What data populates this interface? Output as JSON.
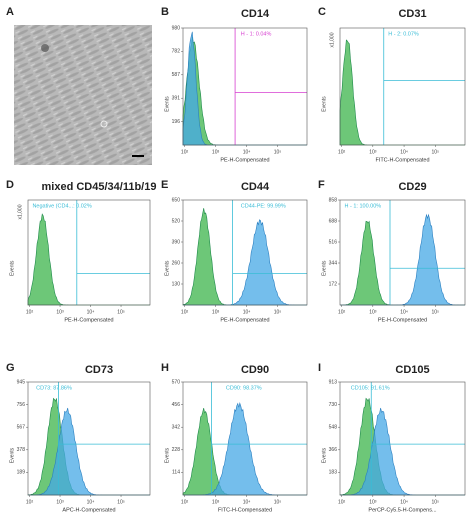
{
  "figure": {
    "panels": [
      {
        "letter": "A"
      },
      {
        "letter": "B",
        "title": "CD14",
        "yaxis": "Events",
        "yticks": [
          "980",
          "782",
          "587",
          "391",
          "196"
        ],
        "xticks": [
          "10²",
          "10³",
          "10⁴",
          "10⁵"
        ],
        "xlabel": "PE-H-Compensated",
        "gate": "H - 1: 0.04%"
      },
      {
        "letter": "C",
        "title": "CD31",
        "yaxis": "Events",
        "yscale": "x1,000",
        "xticks": [
          "10²",
          "10³",
          "10⁴",
          "10⁵"
        ],
        "xlabel": "FITC-H-Compensated",
        "gate": "H - 2: 0.07%"
      },
      {
        "letter": "D",
        "title": "mixed CD45/34/11b/19",
        "yaxis": "Events",
        "yscale": "x1,000",
        "xticks": [
          "10²",
          "10³",
          "10⁴",
          "10⁵"
        ],
        "xlabel": "PE-H-Compensated",
        "gate": "Negative (CD4...: 0.02%"
      },
      {
        "letter": "E",
        "title": "CD44",
        "yaxis": "Events",
        "yticks": [
          "650",
          "520",
          "390",
          "260",
          "130"
        ],
        "xticks": [
          "10²",
          "10³",
          "10⁴",
          "10⁵"
        ],
        "xlabel": "PE-H-Compensated",
        "gate": "CD44-PE: 99.99%"
      },
      {
        "letter": "F",
        "title": "CD29",
        "yaxis": "Events",
        "yticks": [
          "858",
          "688",
          "516",
          "344",
          "172"
        ],
        "xticks": [
          "10²",
          "10³",
          "10⁴",
          "10⁵"
        ],
        "xlabel": "PE-H-Compensated",
        "gate": "H - 1: 100.00%"
      },
      {
        "letter": "G",
        "title": "CD73",
        "yaxis": "Events",
        "yticks": [
          "945",
          "756",
          "567",
          "378",
          "189"
        ],
        "xticks": [
          "10²",
          "10³",
          "10⁴",
          "10⁵"
        ],
        "xlabel": "APC-H-Compensated",
        "gate": "CD73: 87.86%"
      },
      {
        "letter": "H",
        "title": "CD90",
        "yaxis": "Events",
        "yticks": [
          "570",
          "456",
          "342",
          "228",
          "114"
        ],
        "xticks": [
          "10²",
          "10³",
          "10⁴",
          "10⁵"
        ],
        "xlabel": "FITC-H-Compensated",
        "gate": "CD90: 98.37%"
      },
      {
        "letter": "I",
        "title": "CD105",
        "yaxis": "Events",
        "yticks": [
          "913",
          "730",
          "548",
          "366",
          "183"
        ],
        "xticks": [
          "10²",
          "10³",
          "10⁴",
          "10⁵"
        ],
        "xlabel": "PerCP-Cy5.5-H-Compens...",
        "gate": "CD105: 91.61%"
      }
    ]
  }
}
